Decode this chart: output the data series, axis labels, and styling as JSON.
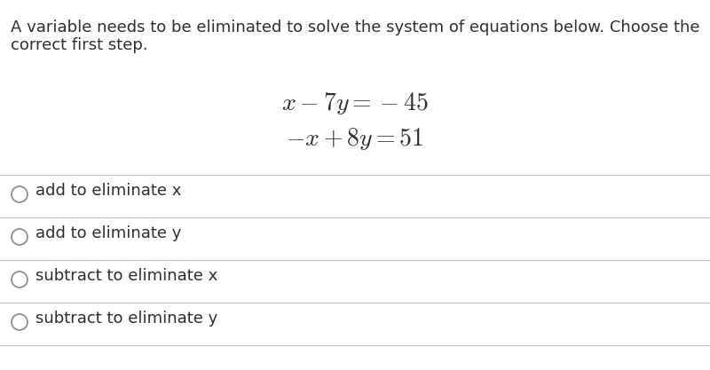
{
  "background_color": "#ffffff",
  "question_line1": "A variable needs to be eliminated to solve the system of equations below. Choose the",
  "question_line2": "correct first step.",
  "equation1": "$x - 7y = -45$",
  "equation2": "$-x + 8y = 51$",
  "options": [
    "add to eliminate x",
    "add to eliminate y",
    "subtract to eliminate x",
    "subtract to eliminate y"
  ],
  "text_color": "#2e2e2e",
  "line_color": "#c8c8c8",
  "circle_color": "#888888",
  "question_fontsize": 13.0,
  "equation_fontsize": 20,
  "option_fontsize": 13.0
}
